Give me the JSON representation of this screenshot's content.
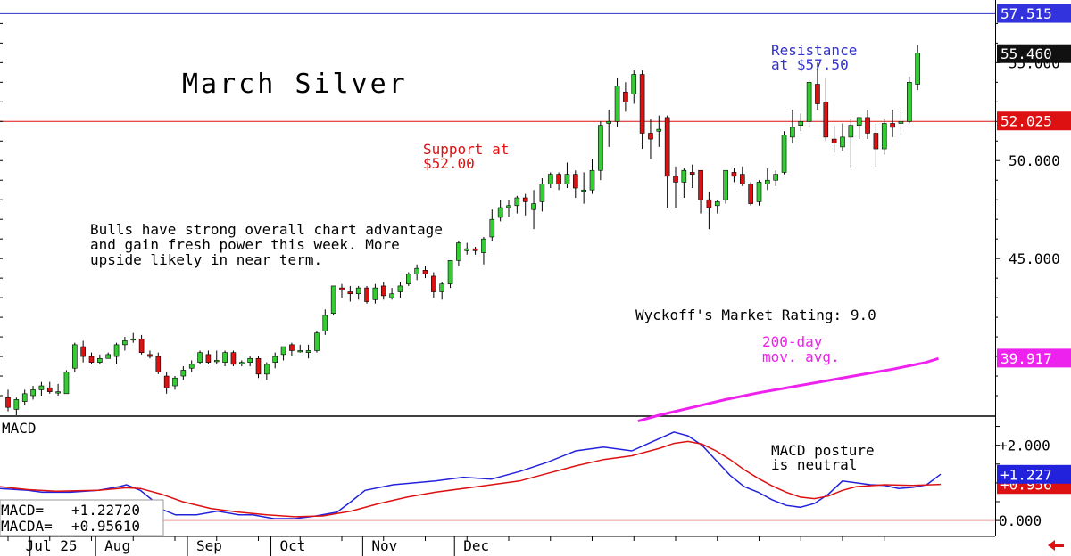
{
  "colors": {
    "up_candle": "#33cc33",
    "down_candle": "#dd1111",
    "resistance": "#3333cc",
    "support": "#dd1111",
    "ma200": "#ee22ee",
    "macd": "#2222dd",
    "macd_avg": "#dd1111",
    "last_price_tag": "#111111"
  },
  "chart_data": [
    {
      "type": "candlestick",
      "title": "March Silver",
      "ylim": [
        37.0,
        58.2
      ],
      "y_ticks": [
        {
          "value": 55.0,
          "label": "55.000"
        },
        {
          "value": 50.0,
          "label": "50.000"
        },
        {
          "value": 45.0,
          "label": "45.000"
        }
      ],
      "price_tags": [
        {
          "value": 57.515,
          "label": "57.515",
          "color": "#3333dd"
        },
        {
          "value": 55.46,
          "label": "55.460",
          "color": "#111111"
        },
        {
          "value": 52.025,
          "label": "52.025",
          "color": "#dd1111"
        },
        {
          "value": 39.917,
          "label": "39.917",
          "color": "#ee22ee"
        }
      ],
      "levels": [
        {
          "name": "Resistance",
          "value": 57.5
        },
        {
          "name": "Support",
          "value": 52.0
        }
      ],
      "x_labels": [
        "Jul 25",
        "Aug",
        "Sep",
        "Oct",
        "Nov",
        "Dec"
      ],
      "x_label_index": [
        0.5,
        10.5,
        21.5,
        31.5,
        42.5,
        53.5
      ],
      "candles": [
        [
          37.9,
          38.3,
          37.2,
          37.4
        ],
        [
          37.3,
          37.9,
          37.0,
          37.8
        ],
        [
          37.7,
          38.3,
          37.5,
          38.1
        ],
        [
          38.0,
          38.5,
          37.8,
          38.3
        ],
        [
          38.3,
          38.7,
          38.0,
          38.5
        ],
        [
          38.4,
          38.7,
          38.1,
          38.2
        ],
        [
          38.2,
          38.6,
          38.0,
          38.2
        ],
        [
          38.1,
          39.3,
          38.1,
          39.2
        ],
        [
          39.4,
          40.7,
          39.2,
          40.6
        ],
        [
          40.5,
          40.8,
          39.7,
          40.0
        ],
        [
          40.0,
          40.2,
          39.6,
          39.7
        ],
        [
          39.7,
          40.1,
          39.6,
          39.9
        ],
        [
          39.9,
          40.2,
          39.9,
          40.1
        ],
        [
          40.0,
          40.7,
          39.6,
          40.6
        ],
        [
          40.6,
          41.0,
          40.3,
          40.8
        ],
        [
          40.9,
          41.2,
          40.7,
          40.9
        ],
        [
          40.9,
          41.1,
          40.1,
          40.2
        ],
        [
          40.1,
          40.3,
          39.9,
          40.0
        ],
        [
          40.0,
          40.2,
          39.1,
          39.2
        ],
        [
          39.0,
          39.2,
          38.1,
          38.4
        ],
        [
          38.5,
          39.0,
          38.3,
          38.9
        ],
        [
          39.0,
          39.5,
          38.8,
          39.3
        ],
        [
          39.4,
          39.8,
          39.2,
          39.6
        ],
        [
          39.7,
          40.3,
          39.6,
          40.2
        ],
        [
          40.1,
          40.3,
          39.6,
          39.7
        ],
        [
          39.8,
          40.3,
          39.6,
          39.8
        ],
        [
          39.7,
          40.3,
          39.5,
          40.2
        ],
        [
          40.2,
          40.3,
          39.5,
          39.6
        ],
        [
          39.7,
          39.8,
          39.5,
          39.7
        ],
        [
          39.7,
          40.0,
          39.5,
          39.9
        ],
        [
          39.9,
          40.0,
          38.9,
          39.1
        ],
        [
          39.1,
          39.7,
          38.8,
          39.6
        ],
        [
          39.7,
          40.2,
          39.4,
          40.0
        ],
        [
          40.1,
          40.5,
          39.8,
          40.5
        ],
        [
          40.6,
          40.7,
          40.0,
          40.3
        ],
        [
          40.3,
          40.6,
          40.2,
          40.3
        ],
        [
          40.2,
          40.6,
          39.9,
          40.3
        ],
        [
          40.3,
          41.3,
          40.2,
          41.2
        ],
        [
          41.3,
          42.4,
          41.1,
          42.1
        ],
        [
          42.2,
          43.6,
          42.1,
          43.6
        ],
        [
          43.5,
          43.7,
          43.0,
          43.4
        ],
        [
          43.3,
          43.6,
          42.8,
          43.2
        ],
        [
          43.2,
          43.6,
          42.9,
          43.5
        ],
        [
          43.5,
          43.6,
          42.7,
          42.8
        ],
        [
          42.9,
          43.7,
          42.7,
          43.5
        ],
        [
          43.6,
          43.8,
          42.9,
          43.1
        ],
        [
          43.0,
          43.5,
          42.9,
          43.2
        ],
        [
          43.3,
          43.8,
          43.0,
          43.6
        ],
        [
          43.7,
          44.3,
          43.6,
          44.2
        ],
        [
          44.2,
          44.7,
          43.9,
          44.5
        ],
        [
          44.4,
          44.6,
          44.0,
          44.2
        ],
        [
          44.1,
          44.3,
          43.0,
          43.3
        ],
        [
          43.3,
          43.8,
          42.9,
          43.7
        ],
        [
          43.7,
          44.9,
          43.5,
          44.9
        ],
        [
          44.9,
          45.9,
          44.6,
          45.8
        ],
        [
          45.4,
          45.8,
          45.2,
          45.5
        ],
        [
          45.5,
          45.6,
          45.2,
          45.4
        ],
        [
          45.3,
          46.1,
          44.7,
          46.0
        ],
        [
          46.1,
          47.5,
          45.9,
          47.0
        ],
        [
          47.1,
          48.0,
          46.9,
          47.6
        ],
        [
          47.6,
          48.0,
          47.1,
          47.7
        ],
        [
          47.7,
          48.2,
          47.3,
          48.1
        ],
        [
          48.1,
          48.3,
          47.2,
          47.9
        ],
        [
          47.5,
          48.5,
          46.5,
          47.8
        ],
        [
          47.9,
          49.1,
          47.4,
          48.8
        ],
        [
          48.8,
          49.4,
          48.6,
          49.3
        ],
        [
          49.3,
          49.4,
          48.5,
          48.8
        ],
        [
          48.8,
          49.9,
          48.6,
          49.3
        ],
        [
          49.3,
          49.5,
          48.1,
          48.6
        ],
        [
          48.5,
          49.4,
          47.8,
          48.5
        ],
        [
          48.5,
          50.1,
          48.3,
          49.5
        ],
        [
          49.5,
          52.0,
          49.0,
          51.8
        ],
        [
          51.9,
          52.6,
          50.7,
          52.0
        ],
        [
          52.0,
          54.2,
          51.7,
          53.8
        ],
        [
          53.5,
          54.0,
          52.5,
          53.0
        ],
        [
          53.4,
          54.6,
          52.9,
          54.4
        ],
        [
          54.4,
          54.6,
          50.6,
          51.4
        ],
        [
          51.4,
          52.1,
          50.1,
          51.1
        ],
        [
          51.5,
          52.3,
          50.7,
          51.6
        ],
        [
          52.2,
          52.3,
          47.6,
          49.2
        ],
        [
          49.2,
          49.7,
          47.6,
          48.9
        ],
        [
          48.9,
          49.6,
          48.1,
          49.5
        ],
        [
          49.4,
          49.8,
          48.6,
          49.3
        ],
        [
          49.5,
          49.5,
          47.3,
          48.0
        ],
        [
          48.0,
          48.4,
          46.5,
          47.6
        ],
        [
          47.7,
          48.0,
          47.3,
          47.9
        ],
        [
          48.0,
          49.4,
          47.8,
          49.5
        ],
        [
          49.4,
          49.6,
          48.9,
          49.2
        ],
        [
          49.3,
          49.7,
          48.7,
          48.8
        ],
        [
          48.8,
          48.9,
          47.7,
          47.8
        ],
        [
          47.9,
          49.0,
          47.7,
          48.9
        ],
        [
          48.8,
          49.6,
          48.5,
          49.0
        ],
        [
          49.0,
          49.5,
          48.7,
          49.3
        ],
        [
          49.4,
          51.5,
          49.3,
          51.3
        ],
        [
          51.2,
          52.6,
          50.9,
          51.7
        ],
        [
          51.8,
          52.4,
          51.5,
          52.0
        ],
        [
          52.0,
          54.1,
          51.7,
          54.0
        ],
        [
          53.9,
          55.0,
          52.6,
          52.9
        ],
        [
          53.0,
          54.2,
          51.0,
          51.2
        ],
        [
          51.1,
          51.8,
          50.4,
          50.9
        ],
        [
          50.7,
          51.9,
          50.5,
          51.2
        ],
        [
          51.2,
          52.1,
          49.6,
          51.8
        ],
        [
          51.8,
          52.2,
          51.1,
          52.2
        ],
        [
          52.2,
          52.6,
          51.1,
          51.4
        ],
        [
          51.4,
          51.9,
          49.7,
          50.6
        ],
        [
          50.6,
          52.1,
          50.3,
          51.9
        ],
        [
          51.9,
          52.6,
          51.2,
          51.7
        ],
        [
          51.9,
          52.7,
          51.3,
          52.0
        ],
        [
          52.0,
          54.3,
          51.9,
          54.0
        ],
        [
          53.9,
          55.9,
          53.6,
          55.5
        ]
      ],
      "ma200": [
        {
          "x": 75.5,
          "y": 36.7
        },
        {
          "x": 78,
          "y": 37.0
        },
        {
          "x": 82,
          "y": 37.4
        },
        {
          "x": 86,
          "y": 37.8
        },
        {
          "x": 90,
          "y": 38.15
        },
        {
          "x": 94,
          "y": 38.45
        },
        {
          "x": 98,
          "y": 38.75
        },
        {
          "x": 102,
          "y": 39.05
        },
        {
          "x": 106,
          "y": 39.35
        },
        {
          "x": 110,
          "y": 39.7
        },
        {
          "x": 111.5,
          "y": 39.9
        }
      ],
      "annotations": {
        "resistance_text": [
          "Resistance",
          "at $57.50"
        ],
        "support_text": [
          "Support at",
          "$52.00"
        ],
        "comment": [
          "Bulls have strong overall chart advantage",
          "and gain fresh power this week. More",
          "upside likely in near term."
        ],
        "rating": "Wyckoff's Market Rating: 9.0",
        "ma_label": [
          "200-day",
          "mov. avg."
        ]
      }
    },
    {
      "type": "line",
      "title": "MACD",
      "ylim": [
        -0.4,
        2.75
      ],
      "y_ticks": [
        {
          "value": 2.0,
          "label": "+2.000"
        },
        {
          "value": 0.0,
          "label": "0.000"
        }
      ],
      "price_tags": [
        {
          "value": 0.956,
          "label": "+0.956",
          "color": "#dd1111"
        },
        {
          "value": 1.227,
          "label": "+1.227",
          "color": "#2222dd"
        }
      ],
      "readout": [
        {
          "label": "MACD=",
          "value": "+1.22720"
        },
        {
          "label": "MACDA=",
          "value": "+0.95610"
        }
      ],
      "annotation": [
        "MACD posture",
        "is neutral"
      ],
      "series": [
        {
          "name": "MACD",
          "points": [
            {
              "x": 0,
              "y": 0.85
            },
            {
              "x": 4,
              "y": 0.8
            },
            {
              "x": 6,
              "y": 0.75
            },
            {
              "x": 10,
              "y": 0.75
            },
            {
              "x": 14,
              "y": 0.8
            },
            {
              "x": 17,
              "y": 0.9
            },
            {
              "x": 18,
              "y": 0.95
            },
            {
              "x": 20,
              "y": 0.8
            },
            {
              "x": 22,
              "y": 0.5
            },
            {
              "x": 23,
              "y": 0.3
            },
            {
              "x": 25,
              "y": 0.15
            },
            {
              "x": 28,
              "y": 0.15
            },
            {
              "x": 31,
              "y": 0.25
            },
            {
              "x": 34,
              "y": 0.15
            },
            {
              "x": 36,
              "y": 0.15
            },
            {
              "x": 39,
              "y": 0.05
            },
            {
              "x": 42,
              "y": 0.05
            },
            {
              "x": 45,
              "y": 0.12
            },
            {
              "x": 48,
              "y": 0.22
            },
            {
              "x": 50,
              "y": 0.5
            },
            {
              "x": 52,
              "y": 0.8
            },
            {
              "x": 56,
              "y": 0.95
            },
            {
              "x": 62,
              "y": 1.05
            },
            {
              "x": 66,
              "y": 1.15
            },
            {
              "x": 70,
              "y": 1.1
            },
            {
              "x": 74,
              "y": 1.3
            },
            {
              "x": 78,
              "y": 1.55
            },
            {
              "x": 82,
              "y": 1.85
            },
            {
              "x": 86,
              "y": 1.95
            },
            {
              "x": 90,
              "y": 1.85
            },
            {
              "x": 93,
              "y": 2.1
            },
            {
              "x": 96,
              "y": 2.35
            },
            {
              "x": 98,
              "y": 2.25
            },
            {
              "x": 100,
              "y": 2.0
            },
            {
              "x": 102,
              "y": 1.6
            },
            {
              "x": 104,
              "y": 1.2
            },
            {
              "x": 106,
              "y": 0.9
            },
            {
              "x": 108,
              "y": 0.75
            },
            {
              "x": 110,
              "y": 0.55
            },
            {
              "x": 112,
              "y": 0.4
            },
            {
              "x": 114,
              "y": 0.35
            },
            {
              "x": 116,
              "y": 0.45
            },
            {
              "x": 118,
              "y": 0.7
            },
            {
              "x": 120,
              "y": 1.05
            },
            {
              "x": 122,
              "y": 1.0
            },
            {
              "x": 124,
              "y": 0.95
            },
            {
              "x": 126,
              "y": 0.93
            },
            {
              "x": 128,
              "y": 0.85
            },
            {
              "x": 130,
              "y": 0.88
            },
            {
              "x": 132,
              "y": 0.95
            },
            {
              "x": 134,
              "y": 1.23
            }
          ]
        },
        {
          "name": "MACDA",
          "points": [
            {
              "x": 0,
              "y": 0.9
            },
            {
              "x": 4,
              "y": 0.82
            },
            {
              "x": 8,
              "y": 0.78
            },
            {
              "x": 14,
              "y": 0.8
            },
            {
              "x": 18,
              "y": 0.87
            },
            {
              "x": 20,
              "y": 0.85
            },
            {
              "x": 23,
              "y": 0.7
            },
            {
              "x": 26,
              "y": 0.5
            },
            {
              "x": 30,
              "y": 0.32
            },
            {
              "x": 34,
              "y": 0.22
            },
            {
              "x": 38,
              "y": 0.15
            },
            {
              "x": 42,
              "y": 0.1
            },
            {
              "x": 46,
              "y": 0.12
            },
            {
              "x": 50,
              "y": 0.25
            },
            {
              "x": 54,
              "y": 0.45
            },
            {
              "x": 58,
              "y": 0.62
            },
            {
              "x": 62,
              "y": 0.75
            },
            {
              "x": 68,
              "y": 0.9
            },
            {
              "x": 74,
              "y": 1.05
            },
            {
              "x": 78,
              "y": 1.25
            },
            {
              "x": 82,
              "y": 1.45
            },
            {
              "x": 86,
              "y": 1.62
            },
            {
              "x": 90,
              "y": 1.72
            },
            {
              "x": 94,
              "y": 1.92
            },
            {
              "x": 96,
              "y": 2.05
            },
            {
              "x": 98,
              "y": 2.1
            },
            {
              "x": 100,
              "y": 2.03
            },
            {
              "x": 102,
              "y": 1.85
            },
            {
              "x": 104,
              "y": 1.62
            },
            {
              "x": 106,
              "y": 1.35
            },
            {
              "x": 108,
              "y": 1.12
            },
            {
              "x": 110,
              "y": 0.92
            },
            {
              "x": 112,
              "y": 0.75
            },
            {
              "x": 114,
              "y": 0.62
            },
            {
              "x": 116,
              "y": 0.58
            },
            {
              "x": 118,
              "y": 0.65
            },
            {
              "x": 120,
              "y": 0.8
            },
            {
              "x": 122,
              "y": 0.9
            },
            {
              "x": 126,
              "y": 0.95
            },
            {
              "x": 130,
              "y": 0.93
            },
            {
              "x": 134,
              "y": 0.96
            }
          ]
        }
      ]
    }
  ]
}
